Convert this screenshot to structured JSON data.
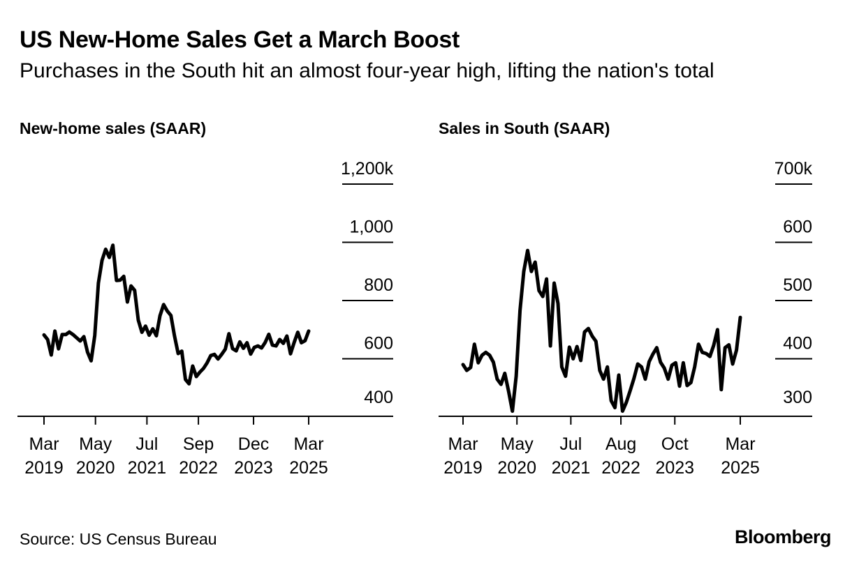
{
  "title": "US New-Home Sales Get a March Boost",
  "subtitle": "Purchases in the South hit an almost four-year high, lifting the nation's total",
  "source": "Source: US Census Bureau",
  "brand": "Bloomberg",
  "chart_data": [
    {
      "type": "line",
      "title": "New-home sales (SAAR)",
      "x_start": "2019-03",
      "x_end": "2025-03",
      "xtick_labels": [
        {
          "month": "2019-03",
          "line1": "Mar",
          "line2": "2019"
        },
        {
          "month": "2020-05",
          "line1": "May",
          "line2": "2020"
        },
        {
          "month": "2021-07",
          "line1": "Jul",
          "line2": "2021"
        },
        {
          "month": "2022-09",
          "line1": "Sep",
          "line2": "2022"
        },
        {
          "month": "2023-12",
          "line1": "Dec",
          "line2": "2023"
        },
        {
          "month": "2025-03",
          "line1": "Mar",
          "line2": "2025"
        }
      ],
      "yticks": [
        400,
        600,
        800,
        1000,
        1200
      ],
      "ytick_labels": [
        "400",
        "600",
        "800",
        "1,000",
        "1,200k"
      ],
      "ylim": [
        400,
        1200
      ],
      "series": [
        {
          "values": [
            682,
            666,
            613,
            695,
            634,
            683,
            683,
            692,
            683,
            672,
            661,
            676,
            623,
            593,
            680,
            860,
            938,
            976,
            948,
            990,
            869,
            870,
            883,
            795,
            850,
            835,
            733,
            691,
            712,
            681,
            703,
            679,
            748,
            786,
            764,
            749,
            678,
            618,
            626,
            529,
            514,
            575,
            539,
            554,
            567,
            586,
            611,
            615,
            599,
            615,
            633,
            686,
            635,
            627,
            658,
            636,
            655,
            616,
            639,
            644,
            637,
            656,
            684,
            647,
            644,
            666,
            653,
            678,
            617,
            656,
            691,
            655,
            662,
            695
          ]
        }
      ]
    },
    {
      "type": "line",
      "title": "Sales in South (SAAR)",
      "x_start": "2019-03",
      "x_end": "2025-03",
      "xtick_labels": [
        {
          "month": "2019-03",
          "line1": "Mar",
          "line2": "2019"
        },
        {
          "month": "2020-05",
          "line1": "May",
          "line2": "2020"
        },
        {
          "month": "2021-07",
          "line1": "Jul",
          "line2": "2021"
        },
        {
          "month": "2022-08",
          "line1": "Aug",
          "line2": "2022"
        },
        {
          "month": "2023-10",
          "line1": "Oct",
          "line2": "2023"
        },
        {
          "month": "2025-03",
          "line1": "Mar",
          "line2": "2025"
        }
      ],
      "yticks": [
        300,
        400,
        500,
        600,
        700
      ],
      "ytick_labels": [
        "300",
        "400",
        "500",
        "600",
        "700k"
      ],
      "ylim": [
        300,
        700
      ],
      "series": [
        {
          "values": [
            390,
            380,
            385,
            425,
            393,
            406,
            411,
            406,
            394,
            365,
            356,
            375,
            344,
            310,
            370,
            483,
            550,
            586,
            550,
            566,
            517,
            507,
            537,
            422,
            530,
            495,
            386,
            370,
            420,
            400,
            421,
            397,
            446,
            452,
            439,
            430,
            380,
            365,
            386,
            328,
            316,
            372,
            310,
            325,
            345,
            366,
            391,
            386,
            365,
            395,
            408,
            419,
            394,
            384,
            365,
            389,
            393,
            353,
            393,
            354,
            359,
            386,
            425,
            411,
            409,
            404,
            423,
            450,
            347,
            419,
            424,
            391,
            415,
            471
          ]
        }
      ]
    }
  ]
}
